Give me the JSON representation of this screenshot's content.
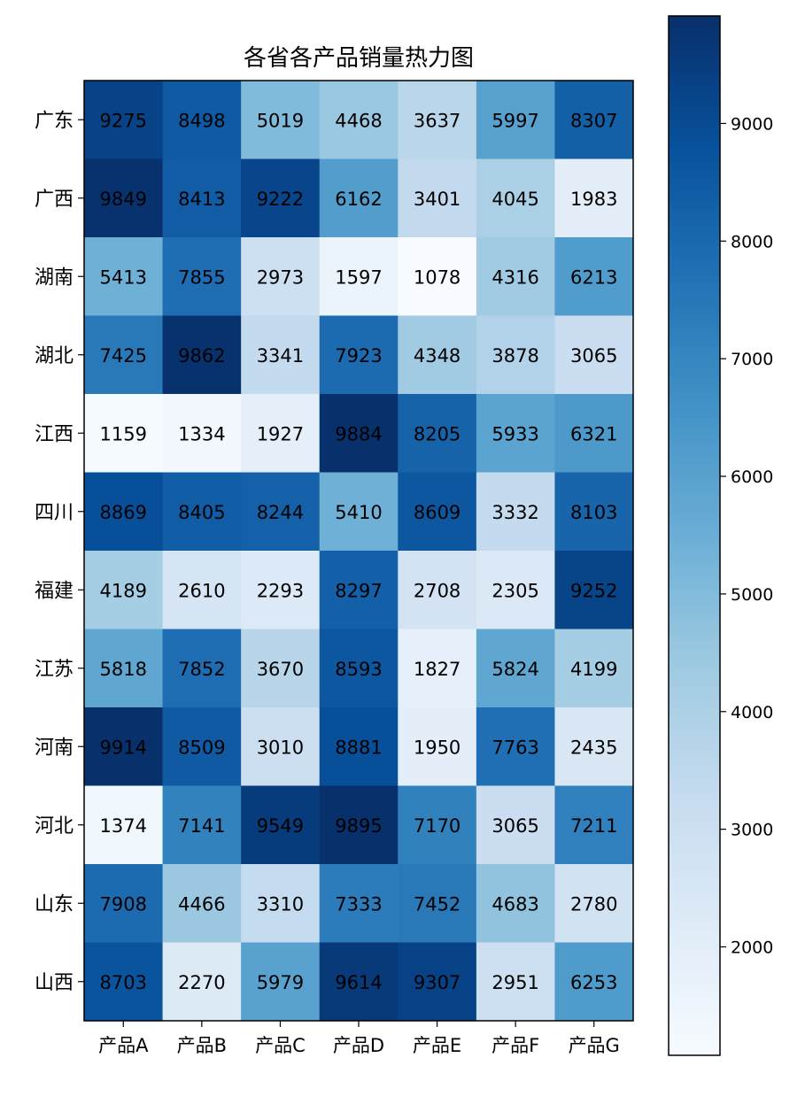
{
  "chart_data": {
    "type": "heatmap",
    "title": "各省各产品销量热力图",
    "x_categories": [
      "产品A",
      "产品B",
      "产品C",
      "产品D",
      "产品E",
      "产品F",
      "产品G"
    ],
    "y_categories": [
      "广东",
      "广西",
      "湖南",
      "湖北",
      "江西",
      "四川",
      "福建",
      "江苏",
      "河南",
      "河北",
      "山东",
      "山西"
    ],
    "values": [
      [
        9275,
        8498,
        5019,
        4468,
        3637,
        5997,
        8307
      ],
      [
        9849,
        8413,
        9222,
        6162,
        3401,
        4045,
        1983
      ],
      [
        5413,
        7855,
        2973,
        1597,
        1078,
        4316,
        6213
      ],
      [
        7425,
        9862,
        3341,
        7923,
        4348,
        3878,
        3065
      ],
      [
        1159,
        1334,
        1927,
        9884,
        8205,
        5933,
        6321
      ],
      [
        8869,
        8405,
        8244,
        5410,
        8609,
        3332,
        8103
      ],
      [
        4189,
        2610,
        2293,
        8297,
        2708,
        2305,
        9252
      ],
      [
        5818,
        7852,
        3670,
        8593,
        1827,
        5824,
        4199
      ],
      [
        9914,
        8509,
        3010,
        8881,
        1950,
        7763,
        2435
      ],
      [
        1374,
        7141,
        9549,
        9895,
        7170,
        3065,
        7211
      ],
      [
        7908,
        4466,
        3310,
        7333,
        7452,
        4683,
        2780
      ],
      [
        8703,
        2270,
        5979,
        9614,
        9307,
        2951,
        6253
      ]
    ],
    "colormap": "Blues",
    "value_range": [
      1078,
      9914
    ],
    "colorbar": {
      "ticks": [
        2000,
        3000,
        4000,
        5000,
        6000,
        7000,
        8000,
        9000
      ],
      "position": "right"
    },
    "colormap_stops": [
      "#f7fbff",
      "#deebf7",
      "#c6dbef",
      "#9ecae1",
      "#6baed6",
      "#4292c6",
      "#2171b5",
      "#08519c",
      "#08306b"
    ]
  }
}
